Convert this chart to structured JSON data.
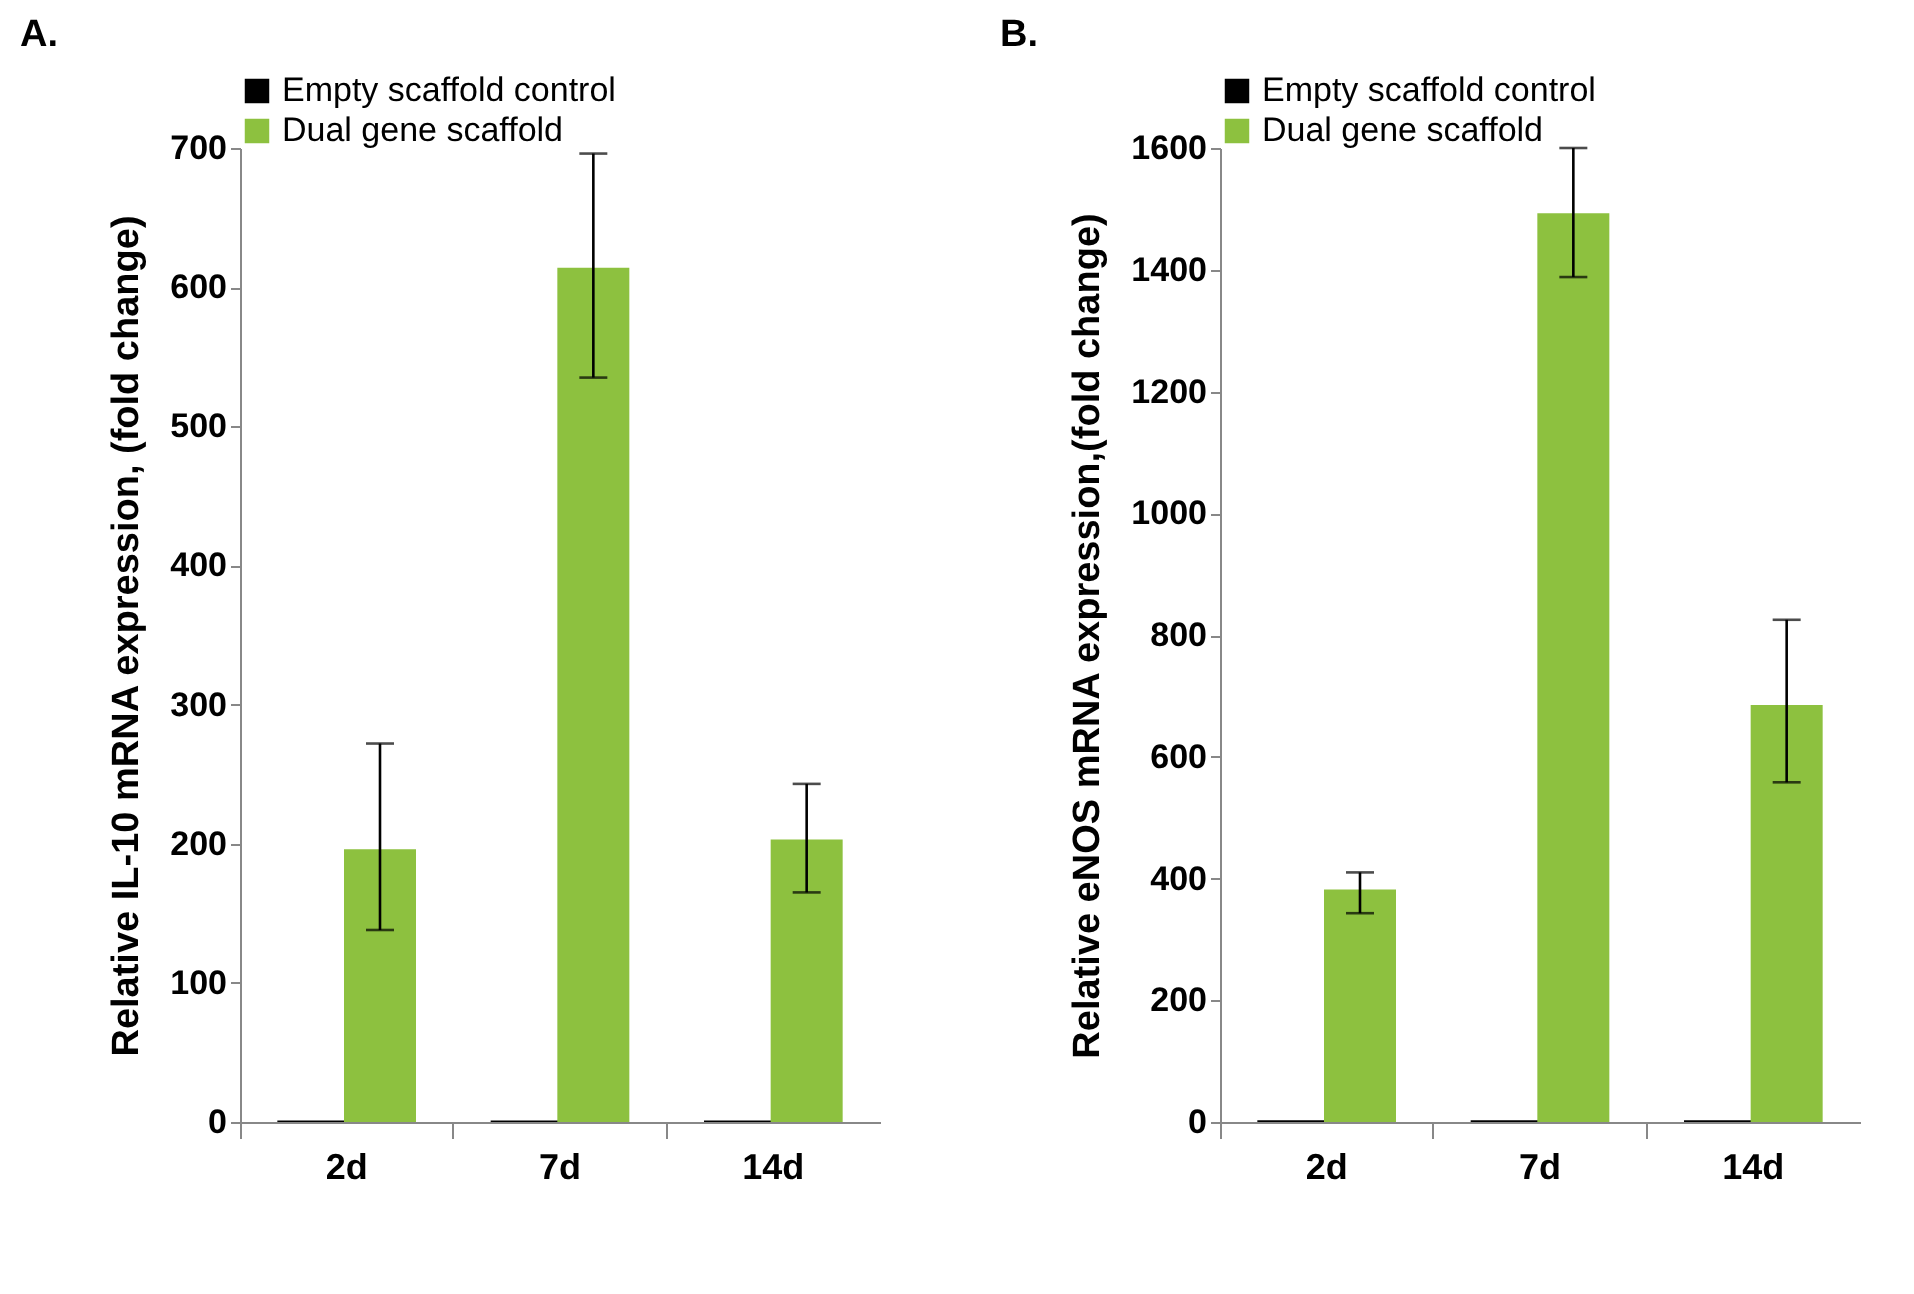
{
  "chart_data": [
    {
      "type": "bar",
      "title": "A.",
      "ylabel": "Relative IL-10 mRNA expression, (fold change)",
      "categories": [
        "2d",
        "7d",
        "14d"
      ],
      "series": [
        {
          "name": "Empty scaffold control",
          "color": "#000000",
          "values": [
            1,
            1,
            1
          ]
        },
        {
          "name": "Dual gene scaffold",
          "color": "#8dc13f",
          "values": [
            196,
            614,
            203
          ],
          "errors": [
            [
              138,
              272
            ],
            [
              535,
              696
            ],
            [
              165,
              243
            ]
          ]
        }
      ],
      "ylim": [
        0,
        700
      ],
      "yticks": [
        0,
        100,
        200,
        300,
        400,
        500,
        600,
        700
      ],
      "grid": false,
      "legend": "top"
    },
    {
      "type": "bar",
      "title": "B.",
      "ylabel": "Relative eNOS mRNA expression,(fold change)",
      "categories": [
        "2d",
        "7d",
        "14d"
      ],
      "series": [
        {
          "name": "Empty scaffold control",
          "color": "#000000",
          "values": [
            3,
            3,
            3
          ]
        },
        {
          "name": "Dual gene scaffold",
          "color": "#8dc13f",
          "values": [
            382,
            1493,
            685
          ],
          "errors": [
            [
              343,
              410
            ],
            [
              1388,
              1600
            ],
            [
              558,
              825
            ]
          ]
        }
      ],
      "ylim": [
        0,
        1600
      ],
      "yticks": [
        0,
        200,
        400,
        600,
        800,
        1000,
        1200,
        1400,
        1600
      ],
      "grid": false,
      "legend": "top"
    }
  ]
}
